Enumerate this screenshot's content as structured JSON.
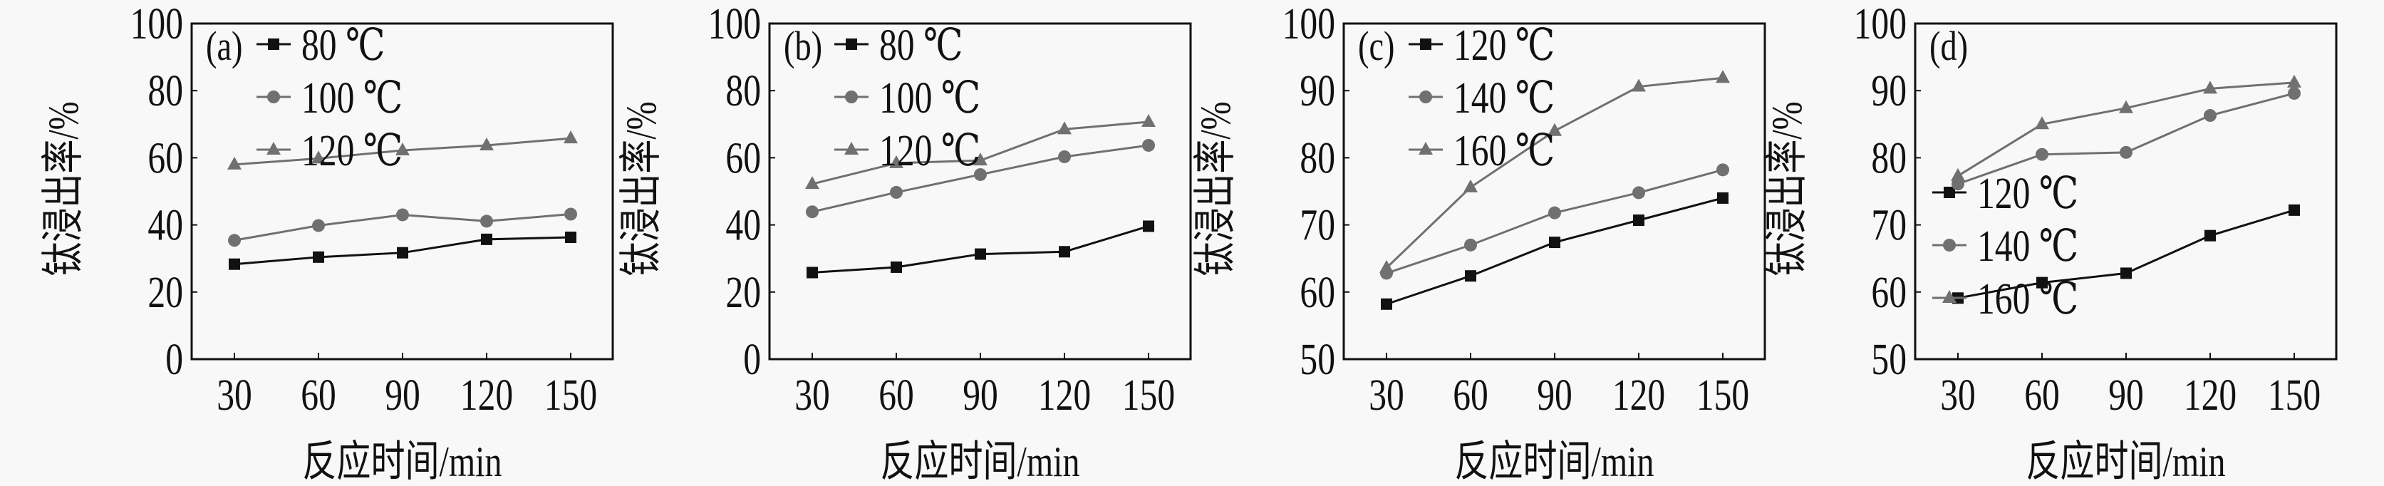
{
  "chart_data": [
    {
      "type": "line",
      "panel_label": "(a)",
      "xlabel": "反应时间/min",
      "ylabel": "钛浸出率/%",
      "x": [
        30,
        60,
        90,
        120,
        150
      ],
      "x_ticks": [
        "30",
        "60",
        "90",
        "120",
        "150"
      ],
      "ylim": [
        0,
        100
      ],
      "y_ticks": [
        "0",
        "20",
        "40",
        "60",
        "80",
        "100"
      ],
      "legend_position": "top-left",
      "series": [
        {
          "name": "80 ℃",
          "marker": "square",
          "color": "#111111",
          "values": [
            28.3,
            30.4,
            31.7,
            35.7,
            36.3
          ]
        },
        {
          "name": "100 ℃",
          "marker": "circle",
          "color": "#707070",
          "values": [
            35.4,
            39.8,
            43.0,
            41.1,
            43.2
          ]
        },
        {
          "name": "120 ℃",
          "marker": "triangle",
          "color": "#707070",
          "values": [
            58.0,
            59.8,
            62.2,
            63.7,
            65.8
          ]
        }
      ]
    },
    {
      "type": "line",
      "panel_label": "(b)",
      "xlabel": "反应时间/min",
      "ylabel": "钛浸出率/%",
      "x": [
        30,
        60,
        90,
        120,
        150
      ],
      "x_ticks": [
        "30",
        "60",
        "90",
        "120",
        "150"
      ],
      "ylim": [
        0,
        100
      ],
      "y_ticks": [
        "0",
        "20",
        "40",
        "60",
        "80",
        "100"
      ],
      "legend_position": "top-left",
      "series": [
        {
          "name": "80 ℃",
          "marker": "square",
          "color": "#111111",
          "values": [
            25.8,
            27.4,
            31.3,
            32.0,
            39.6
          ]
        },
        {
          "name": "100 ℃",
          "marker": "circle",
          "color": "#707070",
          "values": [
            43.9,
            49.7,
            55.0,
            60.3,
            63.7
          ]
        },
        {
          "name": "120 ℃",
          "marker": "triangle",
          "color": "#707070",
          "values": [
            52.2,
            58.4,
            59.2,
            68.5,
            70.7
          ]
        }
      ]
    },
    {
      "type": "line",
      "panel_label": "(c)",
      "xlabel": "反应时间/min",
      "ylabel": "钛浸出率/%",
      "x": [
        30,
        60,
        90,
        120,
        150
      ],
      "x_ticks": [
        "30",
        "60",
        "90",
        "120",
        "150"
      ],
      "ylim": [
        50,
        100
      ],
      "y_ticks": [
        "50",
        "60",
        "70",
        "80",
        "90",
        "100"
      ],
      "legend_position": "top-left",
      "series": [
        {
          "name": "120 ℃",
          "marker": "square",
          "color": "#111111",
          "values": [
            58.2,
            62.4,
            67.4,
            70.7,
            74.0
          ]
        },
        {
          "name": "140 ℃",
          "marker": "circle",
          "color": "#707070",
          "values": [
            62.8,
            67.0,
            71.8,
            74.8,
            78.2
          ]
        },
        {
          "name": "160 ℃",
          "marker": "triangle",
          "color": "#707070",
          "values": [
            63.6,
            75.6,
            84.0,
            90.6,
            91.9
          ]
        }
      ]
    },
    {
      "type": "line",
      "panel_label": "(d)",
      "xlabel": "反应时间/min",
      "ylabel": "钛浸出率/%",
      "x": [
        30,
        60,
        90,
        120,
        150
      ],
      "x_ticks": [
        "30",
        "60",
        "90",
        "120",
        "150"
      ],
      "ylim": [
        50,
        100
      ],
      "y_ticks": [
        "50",
        "60",
        "70",
        "80",
        "90",
        "100"
      ],
      "legend_position": "middle-left",
      "series": [
        {
          "name": "120 ℃",
          "marker": "square",
          "color": "#111111",
          "values": [
            59.1,
            61.4,
            62.8,
            68.4,
            72.2
          ]
        },
        {
          "name": "140 ℃",
          "marker": "circle",
          "color": "#707070",
          "values": [
            76.1,
            80.5,
            80.8,
            86.3,
            89.6
          ]
        },
        {
          "name": "160 ℃",
          "marker": "triangle",
          "color": "#707070",
          "values": [
            77.3,
            85.0,
            87.4,
            90.3,
            91.2
          ]
        }
      ]
    }
  ]
}
